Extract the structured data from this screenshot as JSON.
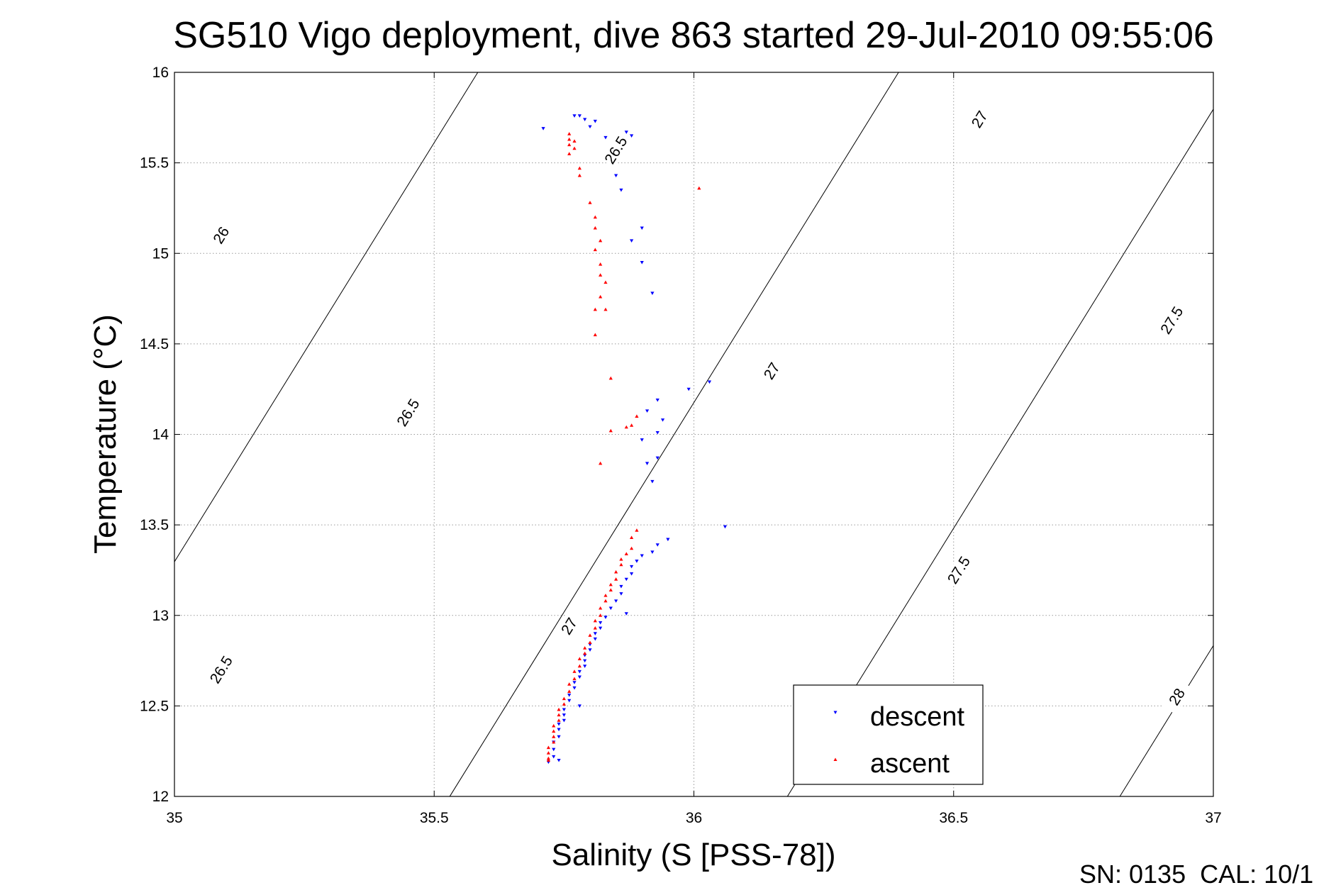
{
  "chart_data": {
    "type": "scatter",
    "title": "SG510 Vigo deployment, dive 863 started 29-Jul-2010 09:55:06",
    "xlabel": "Salinity (S [PSS-78])",
    "ylabel": "Temperature (°C)",
    "xlim": [
      35,
      37
    ],
    "ylim": [
      12,
      16
    ],
    "xticks": [
      "35",
      "35.5",
      "36",
      "36.5",
      "37"
    ],
    "yticks": [
      "12",
      "12.5",
      "13",
      "13.5",
      "14",
      "14.5",
      "15",
      "15.5",
      "16"
    ],
    "grid": true,
    "legend_position": "bottom-right",
    "isopycnals": [
      {
        "sigma": 26.0,
        "labels": [
          "26"
        ]
      },
      {
        "sigma": 26.5,
        "labels": [
          "26.5",
          "26.5",
          "26.5"
        ]
      },
      {
        "sigma": 27.0,
        "labels": [
          "27",
          "27",
          "27"
        ]
      },
      {
        "sigma": 27.5,
        "labels": [
          "27.5",
          "27.5"
        ]
      },
      {
        "sigma": 28.0,
        "labels": [
          "28"
        ]
      }
    ],
    "series": [
      {
        "name": "descent",
        "color": "#0000ff",
        "marker": "triangle-down",
        "points": [
          [
            35.71,
            15.69
          ],
          [
            35.77,
            15.76
          ],
          [
            35.78,
            15.76
          ],
          [
            35.79,
            15.74
          ],
          [
            35.8,
            15.7
          ],
          [
            35.81,
            15.73
          ],
          [
            35.83,
            15.64
          ],
          [
            35.87,
            15.67
          ],
          [
            35.88,
            15.65
          ],
          [
            35.85,
            15.43
          ],
          [
            35.86,
            15.35
          ],
          [
            35.88,
            15.07
          ],
          [
            35.9,
            15.14
          ],
          [
            35.9,
            14.95
          ],
          [
            35.92,
            14.78
          ],
          [
            36.03,
            14.29
          ],
          [
            35.99,
            14.25
          ],
          [
            35.93,
            14.19
          ],
          [
            35.91,
            14.13
          ],
          [
            35.94,
            14.08
          ],
          [
            35.93,
            14.01
          ],
          [
            35.9,
            13.97
          ],
          [
            35.93,
            13.87
          ],
          [
            35.91,
            13.84
          ],
          [
            35.92,
            13.74
          ],
          [
            36.06,
            13.49
          ],
          [
            35.95,
            13.42
          ],
          [
            35.93,
            13.39
          ],
          [
            35.92,
            13.35
          ],
          [
            35.9,
            13.33
          ],
          [
            35.89,
            13.3
          ],
          [
            35.88,
            13.27
          ],
          [
            35.88,
            13.23
          ],
          [
            35.87,
            13.2
          ],
          [
            35.86,
            13.16
          ],
          [
            35.86,
            13.12
          ],
          [
            35.85,
            13.08
          ],
          [
            35.84,
            13.04
          ],
          [
            35.87,
            13.01
          ],
          [
            35.83,
            12.99
          ],
          [
            35.82,
            12.96
          ],
          [
            35.82,
            12.93
          ],
          [
            35.81,
            12.9
          ],
          [
            35.81,
            12.87
          ],
          [
            35.8,
            12.84
          ],
          [
            35.8,
            12.81
          ],
          [
            35.79,
            12.78
          ],
          [
            35.79,
            12.75
          ],
          [
            35.79,
            12.72
          ],
          [
            35.78,
            12.69
          ],
          [
            35.78,
            12.66
          ],
          [
            35.77,
            12.63
          ],
          [
            35.77,
            12.6
          ],
          [
            35.76,
            12.56
          ],
          [
            35.76,
            12.53
          ],
          [
            35.78,
            12.5
          ],
          [
            35.75,
            12.48
          ],
          [
            35.75,
            12.45
          ],
          [
            35.75,
            12.42
          ],
          [
            35.74,
            12.4
          ],
          [
            35.74,
            12.37
          ],
          [
            35.74,
            12.33
          ],
          [
            35.73,
            12.3
          ],
          [
            35.73,
            12.26
          ],
          [
            35.73,
            12.22
          ],
          [
            35.74,
            12.2
          ],
          [
            35.72,
            12.19
          ]
        ]
      },
      {
        "name": "ascent",
        "color": "#ff0000",
        "marker": "triangle-up",
        "points": [
          [
            35.76,
            15.66
          ],
          [
            35.76,
            15.63
          ],
          [
            35.77,
            15.62
          ],
          [
            35.76,
            15.6
          ],
          [
            35.77,
            15.58
          ],
          [
            35.76,
            15.55
          ],
          [
            35.78,
            15.47
          ],
          [
            35.78,
            15.43
          ],
          [
            35.8,
            15.28
          ],
          [
            35.81,
            15.2
          ],
          [
            35.81,
            15.14
          ],
          [
            35.82,
            15.07
          ],
          [
            35.81,
            15.02
          ],
          [
            35.82,
            14.94
          ],
          [
            35.82,
            14.88
          ],
          [
            35.83,
            14.84
          ],
          [
            35.82,
            14.76
          ],
          [
            35.83,
            14.69
          ],
          [
            35.81,
            14.69
          ],
          [
            35.81,
            14.55
          ],
          [
            36.01,
            15.36
          ],
          [
            35.84,
            14.31
          ],
          [
            35.84,
            14.02
          ],
          [
            35.87,
            14.04
          ],
          [
            35.88,
            14.05
          ],
          [
            35.89,
            14.1
          ],
          [
            35.82,
            13.84
          ],
          [
            35.89,
            13.47
          ],
          [
            35.88,
            13.43
          ],
          [
            35.88,
            13.37
          ],
          [
            35.87,
            13.34
          ],
          [
            35.86,
            13.31
          ],
          [
            35.86,
            13.28
          ],
          [
            35.85,
            13.24
          ],
          [
            35.85,
            13.2
          ],
          [
            35.84,
            13.17
          ],
          [
            35.84,
            13.14
          ],
          [
            35.83,
            13.11
          ],
          [
            35.83,
            13.08
          ],
          [
            35.82,
            13.04
          ],
          [
            35.82,
            13.0
          ],
          [
            35.81,
            12.97
          ],
          [
            35.81,
            12.93
          ],
          [
            35.8,
            12.89
          ],
          [
            35.8,
            12.85
          ],
          [
            35.79,
            12.82
          ],
          [
            35.79,
            12.79
          ],
          [
            35.78,
            12.76
          ],
          [
            35.78,
            12.72
          ],
          [
            35.77,
            12.69
          ],
          [
            35.77,
            12.65
          ],
          [
            35.76,
            12.62
          ],
          [
            35.76,
            12.58
          ],
          [
            35.75,
            12.54
          ],
          [
            35.75,
            12.51
          ],
          [
            35.74,
            12.48
          ],
          [
            35.74,
            12.45
          ],
          [
            35.74,
            12.42
          ],
          [
            35.73,
            12.39
          ],
          [
            35.73,
            12.36
          ],
          [
            35.73,
            12.33
          ],
          [
            35.73,
            12.3
          ],
          [
            35.72,
            12.27
          ],
          [
            35.72,
            12.24
          ],
          [
            35.72,
            12.21
          ],
          [
            35.72,
            12.2
          ]
        ]
      }
    ]
  },
  "footer_text": "SN: 0135  CAL: 10/1"
}
